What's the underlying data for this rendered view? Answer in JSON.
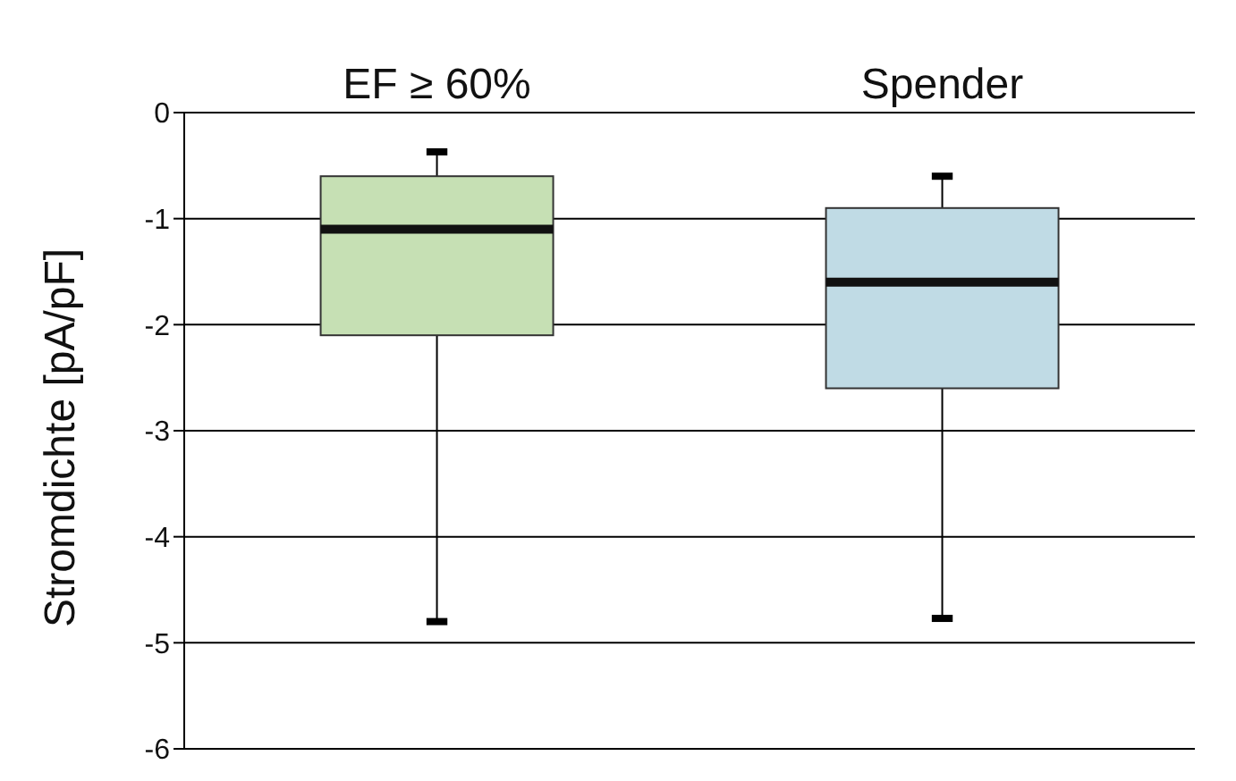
{
  "chart_data": {
    "type": "box",
    "categories": [
      "EF ≥ 60%",
      "Spender"
    ],
    "boxes": [
      {
        "low": -4.8,
        "q1": -2.1,
        "median": -1.1,
        "q3": -0.6,
        "high": -0.37
      },
      {
        "low": -4.77,
        "q1": -2.6,
        "median": -1.6,
        "q3": -0.9,
        "high": -0.6
      }
    ],
    "colors": [
      "#c6e0b4",
      "#c0dbe5"
    ],
    "ylabel": "Stromdichte [pA/pF]",
    "ylim": [
      -6,
      0
    ],
    "yticks": [
      -6,
      -5,
      -4,
      -3,
      -2,
      -1,
      0
    ],
    "grid": "y"
  }
}
